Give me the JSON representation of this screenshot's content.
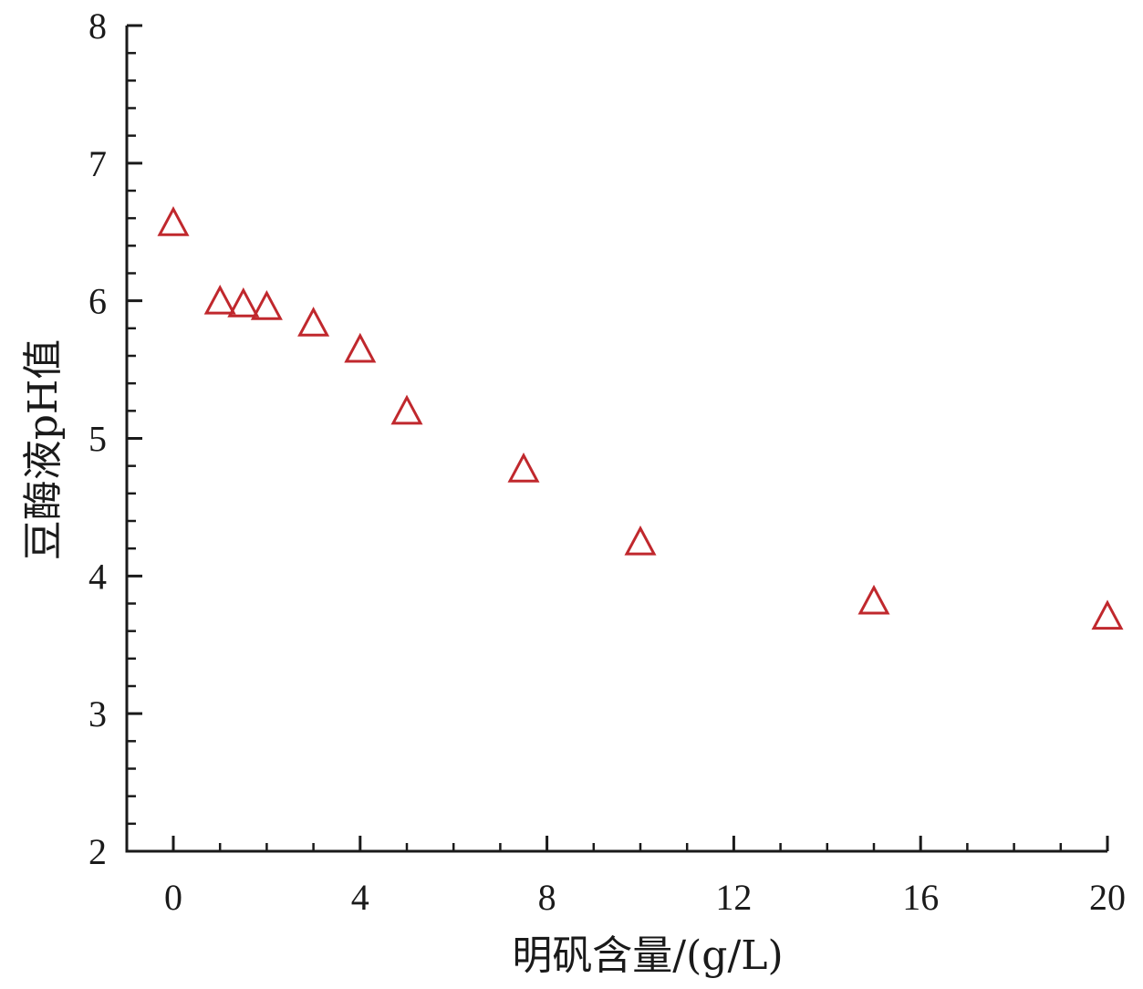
{
  "chart_data": {
    "type": "scatter",
    "title": "",
    "xlabel": "明矾含量/(g/L)",
    "ylabel": "豆酶液pH值",
    "xlim": [
      -1,
      20
    ],
    "ylim": [
      2,
      8
    ],
    "x_ticks": [
      0,
      4,
      8,
      12,
      16,
      20
    ],
    "y_ticks": [
      2,
      3,
      4,
      5,
      6,
      7,
      8
    ],
    "x_tick_labels": [
      "0",
      "4",
      "8",
      "12",
      "16",
      "20"
    ],
    "y_tick_labels": [
      "2",
      "3",
      "4",
      "5",
      "6",
      "7",
      "8"
    ],
    "grid": false,
    "marker": "open-triangle",
    "marker_color": "#c0282d",
    "series": [
      {
        "x": [
          0,
          1,
          1.5,
          2,
          3,
          4,
          5,
          7.5,
          10,
          15,
          20
        ],
        "y": [
          6.56,
          5.99,
          5.97,
          5.95,
          5.83,
          5.64,
          5.19,
          4.77,
          4.24,
          3.81,
          3.7
        ]
      }
    ]
  }
}
